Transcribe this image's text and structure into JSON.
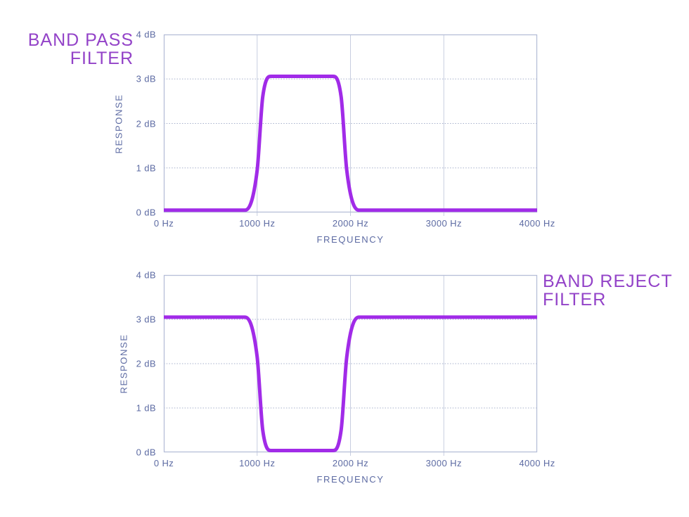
{
  "colors": {
    "background": "#ffffff",
    "title_text": "#9343C8",
    "axis_text": "#5D6BA3",
    "plot_border": "#B6BED8",
    "grid_vertical": "#C7CDE0",
    "grid_dotted": "#A6B0CB",
    "curve": "#A12BE8"
  },
  "chart_data": [
    {
      "type": "line",
      "title": "BAND PASS FILTER",
      "title_lines": [
        "BAND PASS",
        "FILTER"
      ],
      "xlabel": "FREQUENCY",
      "ylabel": "RESPONSE",
      "xlim": [
        0,
        4000
      ],
      "ylim": [
        0,
        4
      ],
      "x_ticks": [
        {
          "value": 0,
          "label": "0 Hz"
        },
        {
          "value": 1000,
          "label": "1000 Hz"
        },
        {
          "value": 2000,
          "label": "2000 Hz"
        },
        {
          "value": 3000,
          "label": "3000 Hz"
        },
        {
          "value": 4000,
          "label": "4000 Hz"
        }
      ],
      "y_ticks": [
        {
          "value": 4,
          "label": "4 dB"
        },
        {
          "value": 3,
          "label": "3 dB"
        },
        {
          "value": 2,
          "label": "2 dB"
        },
        {
          "value": 1,
          "label": "1 dB"
        },
        {
          "value": 0,
          "label": "0 dB"
        }
      ],
      "grid": {
        "vertical": "solid",
        "horizontal": "dotted",
        "border": "solid"
      },
      "series": [
        {
          "name": "band-pass-response",
          "color": "#A12BE8",
          "stroke_width": 5,
          "points": [
            [
              0,
              0.05
            ],
            [
              870,
              0.05
            ],
            [
              1000,
              0.95
            ],
            [
              1060,
              2.6
            ],
            [
              1150,
              3.06
            ],
            [
              1810,
              3.06
            ],
            [
              1900,
              2.6
            ],
            [
              1960,
              0.95
            ],
            [
              2090,
              0.05
            ],
            [
              4000,
              0.05
            ]
          ]
        }
      ]
    },
    {
      "type": "line",
      "title": "BAND REJECT FILTER",
      "title_lines": [
        "BAND REJECT",
        "FILTER"
      ],
      "xlabel": "FREQUENCY",
      "ylabel": "RESPONSE",
      "xlim": [
        0,
        4000
      ],
      "ylim": [
        0,
        4
      ],
      "x_ticks": [
        {
          "value": 0,
          "label": "0 Hz"
        },
        {
          "value": 1000,
          "label": "1000 Hz"
        },
        {
          "value": 2000,
          "label": "2000 Hz"
        },
        {
          "value": 3000,
          "label": "3000 Hz"
        },
        {
          "value": 4000,
          "label": "4000 Hz"
        }
      ],
      "y_ticks": [
        {
          "value": 4,
          "label": "4 dB"
        },
        {
          "value": 3,
          "label": "3 dB"
        },
        {
          "value": 2,
          "label": "2 dB"
        },
        {
          "value": 1,
          "label": "1 dB"
        },
        {
          "value": 0,
          "label": "0 dB"
        }
      ],
      "grid": {
        "vertical": "solid",
        "horizontal": "dotted",
        "border": "solid"
      },
      "series": [
        {
          "name": "band-reject-response",
          "color": "#A12BE8",
          "stroke_width": 5,
          "points": [
            [
              0,
              3.05
            ],
            [
              870,
              3.05
            ],
            [
              1000,
              2.15
            ],
            [
              1060,
              0.5
            ],
            [
              1150,
              0.04
            ],
            [
              1810,
              0.04
            ],
            [
              1900,
              0.5
            ],
            [
              1960,
              2.15
            ],
            [
              2090,
              3.05
            ],
            [
              4000,
              3.05
            ]
          ]
        }
      ]
    }
  ]
}
